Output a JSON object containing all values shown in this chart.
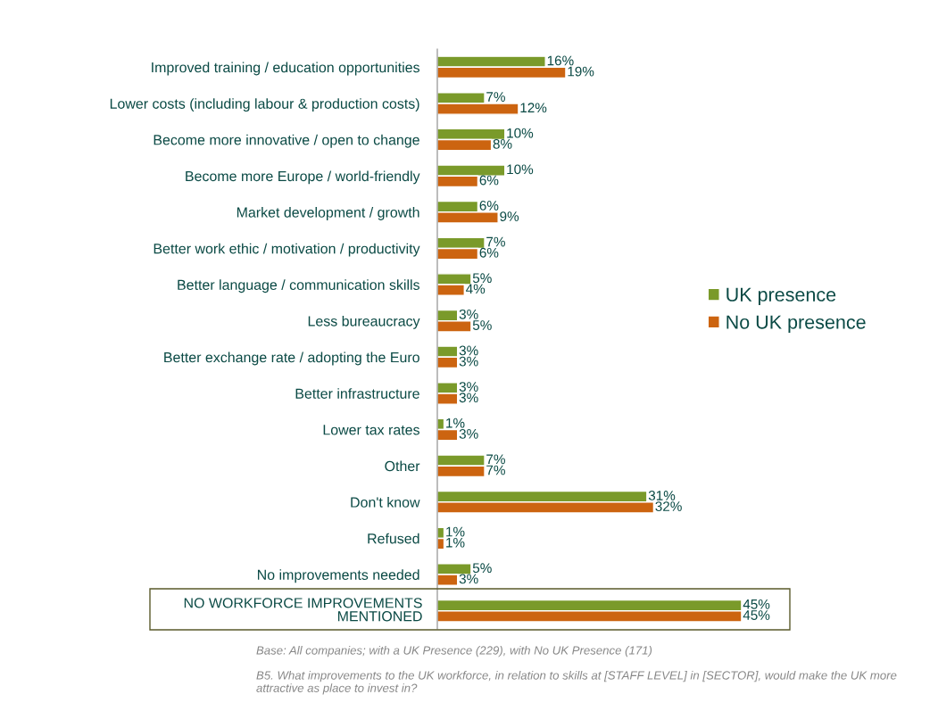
{
  "chart_data": {
    "type": "bar",
    "orientation": "horizontal",
    "legend": "right",
    "categories": [
      "Improved training / education opportunities",
      "Lower costs (including labour & production costs)",
      "Become more innovative / open to change",
      "Become more Europe / world-friendly",
      "Market development / growth",
      "Better work ethic / motivation / productivity",
      "Better language / communication skills",
      "Less bureaucracy",
      "Better exchange rate / adopting the Euro",
      "Better infrastructure",
      "Lower tax rates",
      "Other",
      "Don't know",
      "Refused",
      "No improvements needed",
      "NO WORKFORCE IMPROVEMENTS MENTIONED"
    ],
    "series": [
      {
        "name": "UK presence",
        "color": "#7a9a2a",
        "values": [
          16,
          7,
          10,
          10,
          6,
          7,
          5,
          3,
          3,
          3,
          1,
          7,
          31,
          1,
          5,
          45
        ],
        "value_labels": [
          "16%",
          "7%",
          "10%",
          "10%",
          "6%",
          "7%",
          "5%",
          "3%",
          "3%",
          "3%",
          "1%",
          "7%",
          "31%",
          "1%",
          "5%",
          "45%"
        ]
      },
      {
        "name": "No UK presence",
        "color": "#cc6410",
        "values": [
          19,
          12,
          8,
          6,
          9,
          6,
          4,
          5,
          3,
          3,
          3,
          7,
          32,
          1,
          3,
          45
        ],
        "value_labels": [
          "19%",
          "12%",
          "8%",
          "6%",
          "9%",
          "6%",
          "4%",
          "5%",
          "3%",
          "3%",
          "3%",
          "7%",
          "32%",
          "1%",
          "3%",
          "45%"
        ]
      }
    ],
    "annotations": [
      "Base: All companies; with a UK Presence (229), with No UK Presence (171)",
      "B5. What improvements to the UK workforce, in relation to skills at [STAFF LEVEL] in [SECTOR], would make the UK more attractive as place to invest in?"
    ]
  }
}
